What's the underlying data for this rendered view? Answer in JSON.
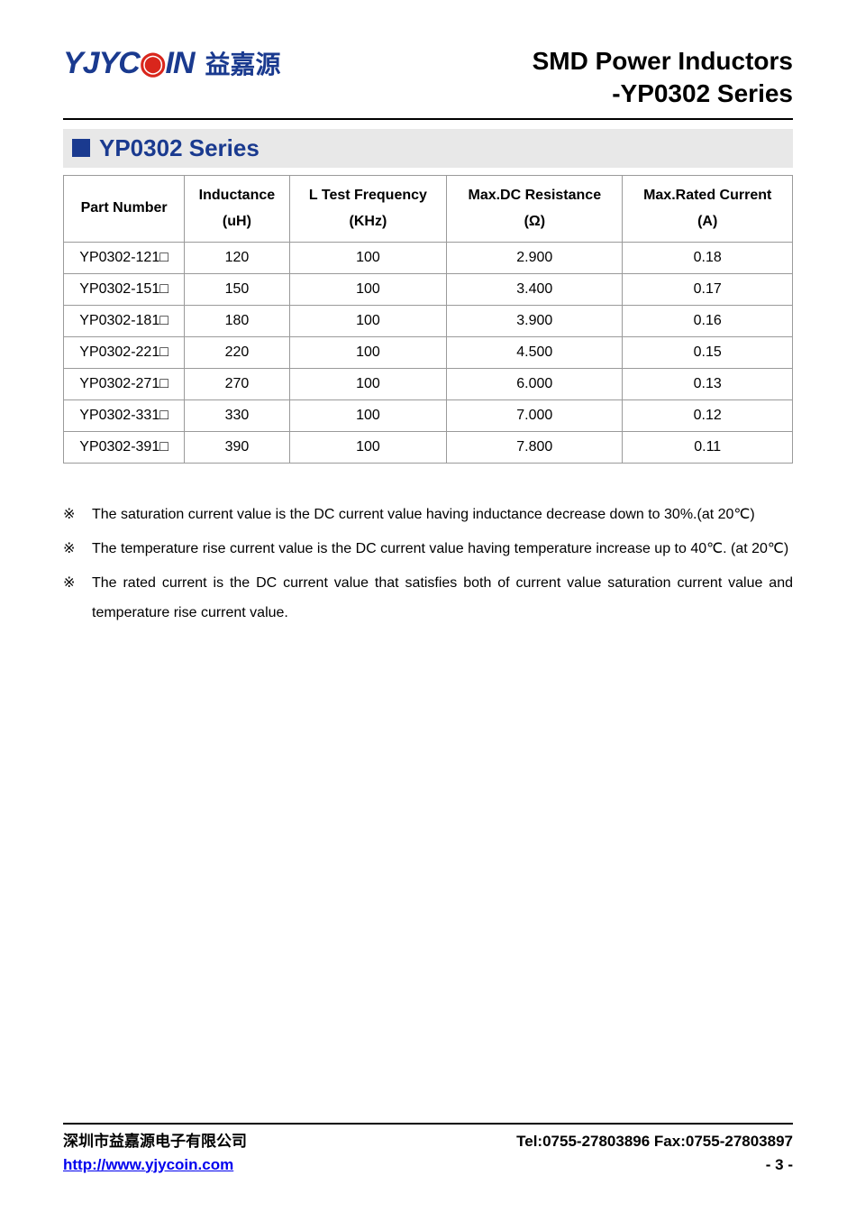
{
  "header": {
    "logo_en": "YJYC",
    "logo_icon_color": "#d9261c",
    "logo_en2": "IN",
    "logo_cn": "益嘉源",
    "doc_title_1": "SMD Power Inductors",
    "doc_title_2": "-YP0302 Series"
  },
  "section": {
    "title": "YP0302 Series",
    "bullet_color": "#1a3a8f",
    "title_color": "#1a3a8f",
    "bg_color": "#e8e8e8"
  },
  "table": {
    "columns": [
      {
        "h1": "Part Number",
        "h2": ""
      },
      {
        "h1": "Inductance",
        "h2": "(uH)"
      },
      {
        "h1": "L Test Frequency",
        "h2": "(KHz)"
      },
      {
        "h1": "Max.DC Resistance",
        "h2": "(Ω)"
      },
      {
        "h1": "Max.Rated Current",
        "h2": "(A)"
      }
    ],
    "rows": [
      [
        "YP0302-121□",
        "120",
        "100",
        "2.900",
        "0.18"
      ],
      [
        "YP0302-151□",
        "150",
        "100",
        "3.400",
        "0.17"
      ],
      [
        "YP0302-181□",
        "180",
        "100",
        "3.900",
        "0.16"
      ],
      [
        "YP0302-221□",
        "220",
        "100",
        "4.500",
        "0.15"
      ],
      [
        "YP0302-271□",
        "270",
        "100",
        "6.000",
        "0.13"
      ],
      [
        "YP0302-331□",
        "330",
        "100",
        "7.000",
        "0.12"
      ],
      [
        "YP0302-391□",
        "390",
        "100",
        "7.800",
        "0.11"
      ]
    ],
    "border_color": "#9a9a9a",
    "header_fontsize": 16,
    "cell_fontsize": 16
  },
  "notes": {
    "marker": "※",
    "items": [
      "The saturation current value is the DC current value having inductance decrease down to 30%.(at 20℃)",
      "The temperature rise current value is the DC current value having temperature increase up to 40℃. (at 20℃)",
      "The rated current is the DC current value that satisfies both of current value saturation current value and temperature rise current value."
    ]
  },
  "footer": {
    "company": "深圳市益嘉源电子有限公司",
    "contact": "Tel:0755-27803896   Fax:0755-27803897",
    "url": "http://www.yjycoin.com",
    "page": "- 3 -"
  },
  "colors": {
    "text": "#000000",
    "brand": "#1a3a8f",
    "accent": "#d9261c",
    "background": "#ffffff"
  }
}
